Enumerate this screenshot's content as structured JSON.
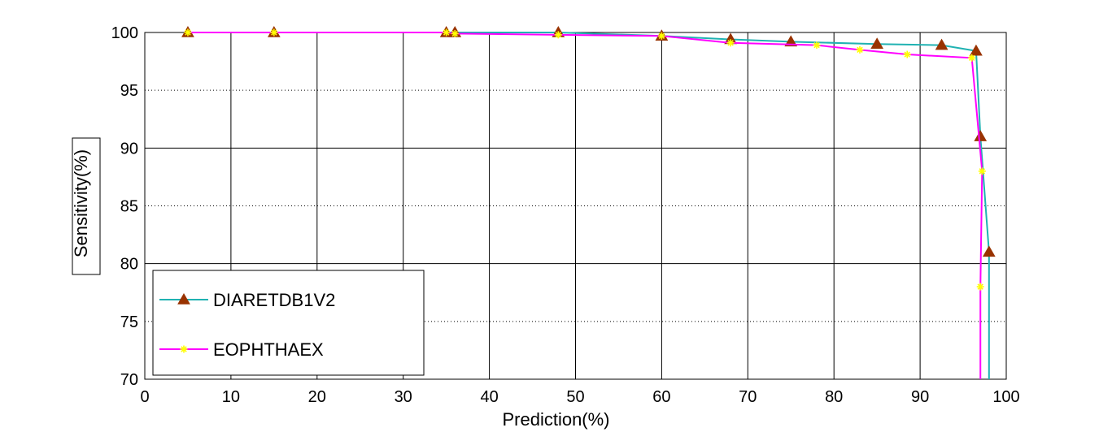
{
  "chart_data": {
    "type": "line",
    "xlabel": "Prediction(%)",
    "ylabel": "Sensitivity(%)",
    "xlim": [
      0,
      100
    ],
    "ylim": [
      70,
      100
    ],
    "xticks": [
      "0",
      "10",
      "20",
      "30",
      "40",
      "50",
      "60",
      "70",
      "80",
      "90",
      "100"
    ],
    "yticks": [
      "70",
      "75",
      "80",
      "85",
      "90",
      "95",
      "100"
    ],
    "major_grid": true,
    "minor_grid": "dotted",
    "legend_position": "bottom-left",
    "series": [
      {
        "name": "DIARETDB1V2",
        "color": "#20b2b2",
        "marker": "triangle",
        "marker_color": "#993300",
        "points": [
          [
            5,
            100
          ],
          [
            15,
            100
          ],
          [
            35,
            100
          ],
          [
            36,
            100
          ],
          [
            48,
            100
          ],
          [
            60,
            99.7
          ],
          [
            68,
            99.4
          ],
          [
            75,
            99.2
          ],
          [
            85,
            99.0
          ],
          [
            92.5,
            98.9
          ],
          [
            96.5,
            98.4
          ],
          [
            97,
            91
          ],
          [
            98,
            81
          ],
          [
            98,
            70
          ]
        ]
      },
      {
        "name": "EOPHTHAEX",
        "color": "#ff00ff",
        "marker": "asterisk",
        "marker_color": "#ffff00",
        "points": [
          [
            5,
            100
          ],
          [
            15,
            100
          ],
          [
            35,
            100
          ],
          [
            36,
            99.9
          ],
          [
            48,
            99.8
          ],
          [
            60,
            99.7
          ],
          [
            68,
            99.1
          ],
          [
            78,
            98.9
          ],
          [
            83,
            98.5
          ],
          [
            88.5,
            98.1
          ],
          [
            96,
            97.8
          ],
          [
            97.2,
            88
          ],
          [
            97,
            78
          ],
          [
            97,
            70
          ]
        ]
      }
    ]
  }
}
